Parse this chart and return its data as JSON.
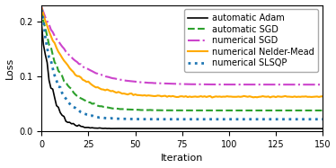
{
  "title": "",
  "xlabel": "Iteration",
  "ylabel": "Loss",
  "xlim": [
    0,
    150
  ],
  "ylim": [
    0.0,
    0.23
  ],
  "yticks": [
    0.0,
    0.1,
    0.2
  ],
  "xticks": [
    0,
    25,
    50,
    75,
    100,
    125,
    150
  ],
  "lines": [
    {
      "label": "automatic Adam",
      "color": "#000000",
      "linestyle": "-",
      "linewidth": 1.2,
      "start": 0.19,
      "decay": 0.18,
      "floor": 0.005,
      "noise_scale": 0.012,
      "noise_decay": 8
    },
    {
      "label": "automatic SGD",
      "color": "#2ca02c",
      "linestyle": "--",
      "linewidth": 1.5,
      "start": 0.22,
      "decay": 0.1,
      "floor": 0.038,
      "noise_scale": 0.004,
      "noise_decay": 15
    },
    {
      "label": "numerical SGD",
      "color": "#cc44cc",
      "linestyle": "-.",
      "linewidth": 1.5,
      "start": 0.225,
      "decay": 0.065,
      "floor": 0.085,
      "noise_scale": 0.002,
      "noise_decay": 20
    },
    {
      "label": "numerical Nelder-Mead",
      "color": "#ffaa00",
      "linestyle": "-",
      "linewidth": 1.5,
      "start": 0.225,
      "decay": 0.075,
      "floor": 0.063,
      "noise_scale": 0.001,
      "noise_decay": 200
    },
    {
      "label": "numerical SLSQP",
      "color": "#1f77b4",
      "linestyle": ":",
      "linewidth": 2.0,
      "start": 0.22,
      "decay": 0.13,
      "floor": 0.022,
      "noise_scale": 0.004,
      "noise_decay": 12
    }
  ],
  "legend_fontsize": 7,
  "axis_fontsize": 8,
  "tick_fontsize": 7,
  "bg_color": "#ffffff"
}
